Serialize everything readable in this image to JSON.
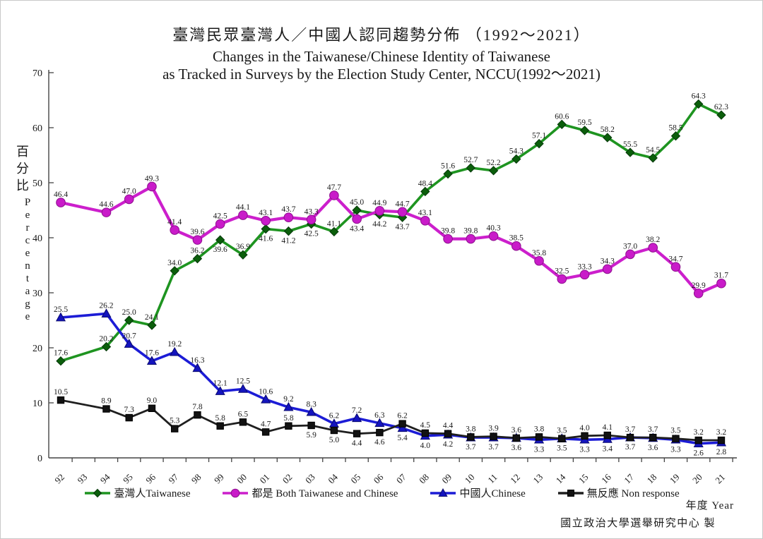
{
  "page": {
    "title_zh": "臺灣民眾臺灣人／中國人認同趨勢分佈 （1992～2021）",
    "title_en_line1": "Changes in the Taiwanese/Chinese Identity of Taiwanese",
    "title_en_line2": "as Tracked in Surveys by the Election Study Center, NCCU(1992～2021)",
    "y_axis_title_zh": "百分比",
    "y_axis_title_en": "Percentage",
    "x_axis_title": "年度 Year",
    "footer_credit": "國立政治大學選舉研究中心 製"
  },
  "legend": {
    "items": [
      {
        "label": "臺灣人Taiwanese"
      },
      {
        "label": "都是 Both Taiwanese and Chinese"
      },
      {
        "label": "中國人Chinese"
      },
      {
        "label": "無反應 Non response"
      }
    ]
  },
  "chart_data": {
    "type": "line",
    "title": "臺灣民眾臺灣人／中國人認同趨勢分佈 （1992～2021） / Changes in the Taiwanese/Chinese Identity of Taiwanese as Tracked in Surveys by the Election Study Center, NCCU(1992～2021)",
    "xlabel": "年度 Year",
    "ylabel": "百分比 Percentage",
    "ylim": [
      0,
      70
    ],
    "yticks": [
      0,
      10,
      20,
      30,
      40,
      50,
      60,
      70
    ],
    "grid": false,
    "legend_position": "bottom",
    "x_years": [
      "92",
      "93",
      "94",
      "95",
      "96",
      "97",
      "98",
      "99",
      "00",
      "01",
      "02",
      "03",
      "04",
      "05",
      "06",
      "07",
      "08",
      "09",
      "10",
      "11",
      "12",
      "13",
      "14",
      "15",
      "16",
      "17",
      "18",
      "19",
      "20",
      "21"
    ],
    "series": [
      {
        "name": "臺灣人 Taiwanese",
        "marker": "diamond",
        "line_color": "#1E9420",
        "marker_color": "#0B5E0B",
        "marker_edge": "#06380a",
        "values": [
          17.6,
          null,
          20.2,
          25.0,
          24.1,
          34.0,
          36.2,
          39.6,
          36.9,
          41.6,
          41.2,
          42.5,
          41.1,
          45.0,
          44.2,
          43.7,
          48.4,
          51.6,
          52.7,
          52.2,
          54.3,
          57.1,
          60.6,
          59.5,
          58.2,
          55.5,
          54.5,
          58.5,
          64.3,
          62.3
        ],
        "label_side": [
          "a",
          null,
          "a",
          "a",
          "a",
          "a",
          "a",
          "b",
          "a",
          "b",
          "b",
          "b",
          "a",
          "a",
          "b",
          "b",
          "a",
          "a",
          "a",
          "a",
          "a",
          "a",
          "a",
          "a",
          "a",
          "a",
          "a",
          "a",
          "a",
          "a"
        ]
      },
      {
        "name": "都是 Both Taiwanese and Chinese",
        "marker": "circle",
        "line_color": "#CC1FCC",
        "marker_color": "#C91BC9",
        "marker_edge": "#8d0f8d",
        "values": [
          46.4,
          null,
          44.6,
          47.0,
          49.3,
          41.4,
          39.6,
          42.5,
          44.1,
          43.1,
          43.7,
          43.3,
          47.7,
          43.4,
          44.9,
          44.7,
          43.1,
          39.8,
          39.8,
          40.3,
          38.5,
          35.8,
          32.5,
          33.3,
          34.3,
          37.0,
          38.2,
          34.7,
          29.9,
          31.7
        ],
        "label_side": [
          "a",
          null,
          "a",
          "a",
          "a",
          "a",
          "a",
          "a",
          "a",
          "a",
          "a",
          "a",
          "a",
          "b",
          "a",
          "a",
          "a",
          "a",
          "a",
          "a",
          "a",
          "a",
          "a",
          "a",
          "a",
          "a",
          "a",
          "a",
          "a",
          "a"
        ]
      },
      {
        "name": "中國人 Chinese",
        "marker": "triangle",
        "line_color": "#1C1CD6",
        "marker_color": "#1414BE",
        "marker_edge": "#0a0a6e",
        "values": [
          25.5,
          null,
          26.2,
          20.7,
          17.6,
          19.2,
          16.3,
          12.1,
          12.5,
          10.6,
          9.2,
          8.3,
          6.2,
          7.2,
          6.3,
          5.4,
          4.0,
          4.2,
          3.7,
          3.7,
          3.6,
          3.3,
          3.5,
          3.3,
          3.4,
          3.7,
          3.6,
          3.3,
          2.6,
          2.8
        ],
        "label_side": [
          "a",
          null,
          "a",
          "a",
          "a",
          "a",
          "a",
          "a",
          "a",
          "a",
          "a",
          "a",
          "a",
          "a",
          "a",
          "b",
          "b",
          "b",
          "b",
          "b",
          "b",
          "b",
          "b",
          "b",
          "b",
          "b",
          "b",
          "b",
          "b",
          "b"
        ]
      },
      {
        "name": "無反應 Non response",
        "marker": "square",
        "line_color": "#1F1F1F",
        "marker_color": "#121212",
        "marker_edge": "#000000",
        "values": [
          10.5,
          null,
          8.9,
          7.3,
          9.0,
          5.3,
          7.8,
          5.8,
          6.5,
          4.7,
          5.8,
          5.9,
          5.0,
          4.4,
          4.6,
          6.2,
          4.5,
          4.4,
          3.8,
          3.9,
          3.6,
          3.8,
          3.5,
          4.0,
          4.1,
          3.7,
          3.7,
          3.5,
          3.2,
          3.2
        ],
        "label_side": [
          "a",
          null,
          "a",
          "a",
          "a",
          "a",
          "a",
          "a",
          "a",
          "a",
          "a",
          "b",
          "b",
          "b",
          "b",
          "a",
          "a",
          "a",
          "a",
          "a",
          "a",
          "a",
          "a",
          "a",
          "a",
          "a",
          "a",
          "a",
          "a",
          "a"
        ]
      }
    ]
  }
}
